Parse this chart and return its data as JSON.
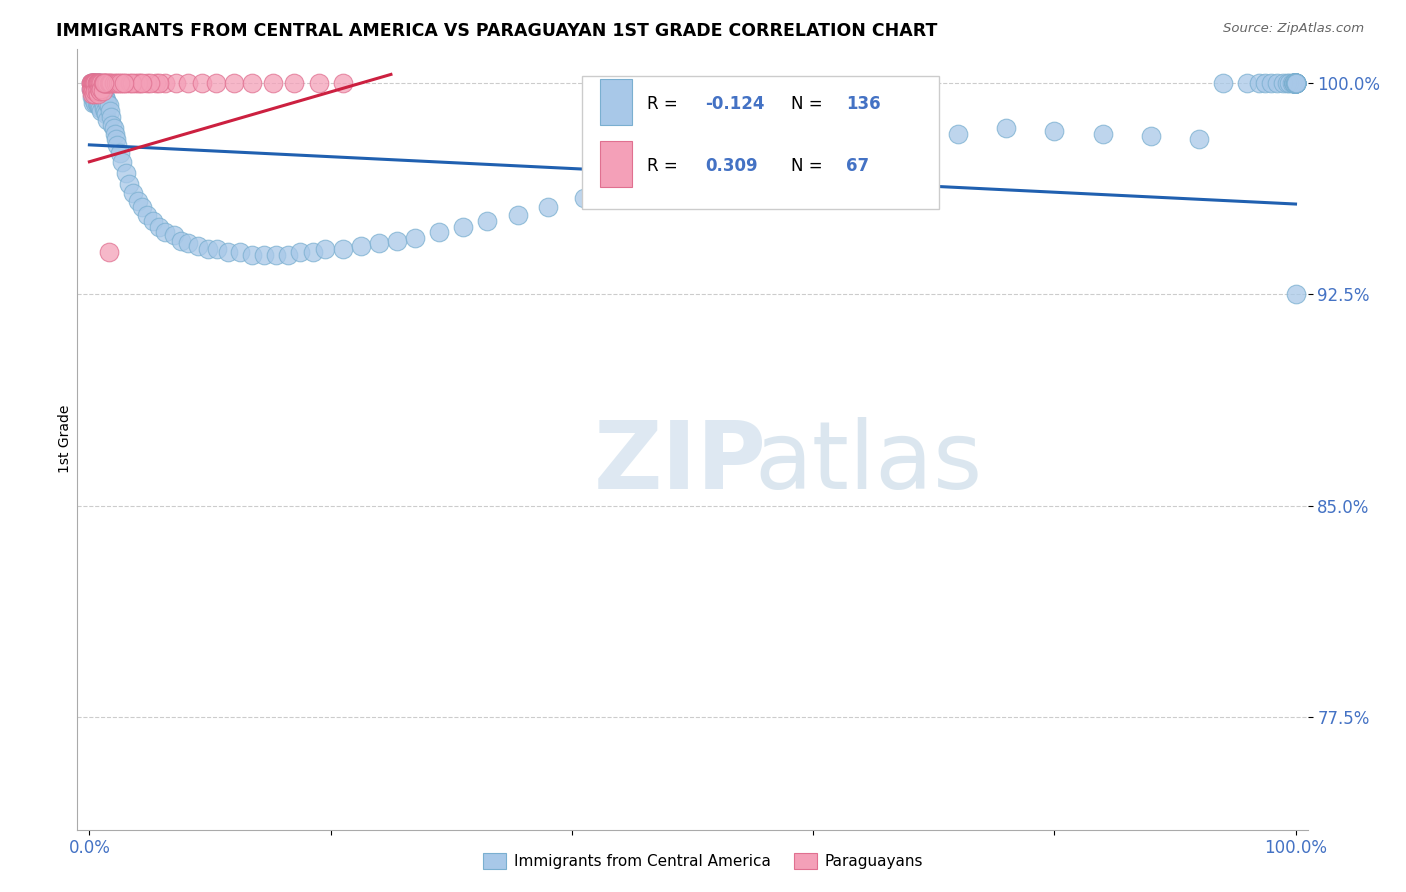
{
  "title": "IMMIGRANTS FROM CENTRAL AMERICA VS PARAGUAYAN 1ST GRADE CORRELATION CHART",
  "source": "Source: ZipAtlas.com",
  "ylabel": "1st Grade",
  "xlim": [
    -0.01,
    1.01
  ],
  "ylim": [
    0.735,
    1.012
  ],
  "yticks": [
    0.775,
    0.85,
    0.925,
    1.0
  ],
  "ytick_labels": [
    "77.5%",
    "85.0%",
    "92.5%",
    "100.0%"
  ],
  "blue_R": -0.124,
  "blue_N": 136,
  "pink_R": 0.309,
  "pink_N": 67,
  "blue_color": "#a8c8e8",
  "pink_color": "#f4a0b8",
  "blue_edge_color": "#7aafd0",
  "pink_edge_color": "#e07090",
  "blue_line_color": "#2060b0",
  "pink_line_color": "#cc2040",
  "legend_label_blue": "Immigrants from Central America",
  "legend_label_pink": "Paraguayans",
  "watermark_zip": "ZIP",
  "watermark_atlas": "atlas",
  "tick_color": "#4472c4",
  "blue_trend_x": [
    0.0,
    1.0
  ],
  "blue_trend_y": [
    0.978,
    0.957
  ],
  "pink_trend_x": [
    0.0,
    0.25
  ],
  "pink_trend_y": [
    0.972,
    1.003
  ],
  "blue_x": [
    0.001,
    0.001,
    0.002,
    0.002,
    0.002,
    0.003,
    0.003,
    0.003,
    0.003,
    0.004,
    0.004,
    0.004,
    0.005,
    0.005,
    0.005,
    0.006,
    0.006,
    0.006,
    0.007,
    0.007,
    0.007,
    0.008,
    0.008,
    0.008,
    0.009,
    0.009,
    0.009,
    0.01,
    0.01,
    0.01,
    0.011,
    0.011,
    0.012,
    0.012,
    0.013,
    0.013,
    0.014,
    0.014,
    0.015,
    0.015,
    0.016,
    0.017,
    0.018,
    0.019,
    0.02,
    0.021,
    0.022,
    0.023,
    0.025,
    0.027,
    0.03,
    0.033,
    0.036,
    0.04,
    0.044,
    0.048,
    0.053,
    0.058,
    0.063,
    0.07,
    0.076,
    0.082,
    0.09,
    0.098,
    0.106,
    0.115,
    0.125,
    0.135,
    0.145,
    0.155,
    0.165,
    0.175,
    0.185,
    0.195,
    0.21,
    0.225,
    0.24,
    0.255,
    0.27,
    0.29,
    0.31,
    0.33,
    0.355,
    0.38,
    0.41,
    0.44,
    0.47,
    0.5,
    0.53,
    0.56,
    0.6,
    0.64,
    0.68,
    0.72,
    0.76,
    0.8,
    0.84,
    0.88,
    0.92,
    0.94,
    0.96,
    0.97,
    0.975,
    0.98,
    0.985,
    0.99,
    0.993,
    0.995,
    0.997,
    0.999,
    0.999,
    0.999,
    0.999,
    0.999,
    0.999,
    0.999,
    0.999,
    0.999,
    0.999,
    0.999,
    0.999,
    1.0,
    1.0,
    1.0,
    1.0,
    1.0,
    1.0,
    1.0,
    1.0,
    1.0,
    1.0,
    1.0,
    1.0,
    1.0,
    1.0,
    1.0,
    1.0
  ],
  "blue_y": [
    1.0,
    0.998,
    1.0,
    0.997,
    0.995,
    1.0,
    0.998,
    0.996,
    0.993,
    1.0,
    0.997,
    0.994,
    1.0,
    0.997,
    0.993,
    1.0,
    0.997,
    0.993,
    1.0,
    0.996,
    0.992,
    1.0,
    0.996,
    0.992,
    1.0,
    0.995,
    0.991,
    0.998,
    0.995,
    0.99,
    0.997,
    0.993,
    0.996,
    0.991,
    0.995,
    0.99,
    0.994,
    0.989,
    0.993,
    0.987,
    0.992,
    0.99,
    0.988,
    0.985,
    0.984,
    0.982,
    0.98,
    0.978,
    0.975,
    0.972,
    0.968,
    0.964,
    0.961,
    0.958,
    0.956,
    0.953,
    0.951,
    0.949,
    0.947,
    0.946,
    0.944,
    0.943,
    0.942,
    0.941,
    0.941,
    0.94,
    0.94,
    0.939,
    0.939,
    0.939,
    0.939,
    0.94,
    0.94,
    0.941,
    0.941,
    0.942,
    0.943,
    0.944,
    0.945,
    0.947,
    0.949,
    0.951,
    0.953,
    0.956,
    0.959,
    0.962,
    0.965,
    0.968,
    0.97,
    0.972,
    0.975,
    0.978,
    0.98,
    0.982,
    0.984,
    0.983,
    0.982,
    0.981,
    0.98,
    1.0,
    1.0,
    1.0,
    1.0,
    1.0,
    1.0,
    1.0,
    1.0,
    1.0,
    1.0,
    1.0,
    1.0,
    1.0,
    1.0,
    1.0,
    1.0,
    1.0,
    1.0,
    1.0,
    1.0,
    1.0,
    1.0,
    1.0,
    1.0,
    1.0,
    0.925,
    1.0,
    1.0,
    1.0,
    1.0,
    1.0,
    1.0,
    1.0,
    1.0,
    1.0,
    1.0,
    1.0,
    1.0
  ],
  "pink_x": [
    0.001,
    0.001,
    0.001,
    0.002,
    0.002,
    0.002,
    0.002,
    0.003,
    0.003,
    0.003,
    0.004,
    0.004,
    0.004,
    0.005,
    0.005,
    0.005,
    0.006,
    0.006,
    0.006,
    0.007,
    0.007,
    0.007,
    0.008,
    0.008,
    0.009,
    0.009,
    0.01,
    0.01,
    0.011,
    0.011,
    0.012,
    0.013,
    0.014,
    0.015,
    0.016,
    0.017,
    0.018,
    0.02,
    0.022,
    0.024,
    0.027,
    0.03,
    0.034,
    0.038,
    0.042,
    0.048,
    0.055,
    0.063,
    0.072,
    0.082,
    0.093,
    0.105,
    0.12,
    0.135,
    0.152,
    0.17,
    0.19,
    0.21,
    0.04,
    0.035,
    0.025,
    0.058,
    0.05,
    0.044,
    0.029,
    0.016,
    0.012
  ],
  "pink_y": [
    1.0,
    1.0,
    0.998,
    1.0,
    1.0,
    0.998,
    0.996,
    1.0,
    1.0,
    0.997,
    1.0,
    1.0,
    0.996,
    1.0,
    1.0,
    0.997,
    1.0,
    1.0,
    0.997,
    1.0,
    1.0,
    0.996,
    1.0,
    0.998,
    1.0,
    0.997,
    1.0,
    0.998,
    1.0,
    0.997,
    1.0,
    1.0,
    1.0,
    1.0,
    1.0,
    1.0,
    1.0,
    1.0,
    1.0,
    1.0,
    1.0,
    1.0,
    1.0,
    1.0,
    1.0,
    1.0,
    1.0,
    1.0,
    1.0,
    1.0,
    1.0,
    1.0,
    1.0,
    1.0,
    1.0,
    1.0,
    1.0,
    1.0,
    1.0,
    1.0,
    1.0,
    1.0,
    1.0,
    1.0,
    1.0,
    0.94,
    1.0
  ]
}
